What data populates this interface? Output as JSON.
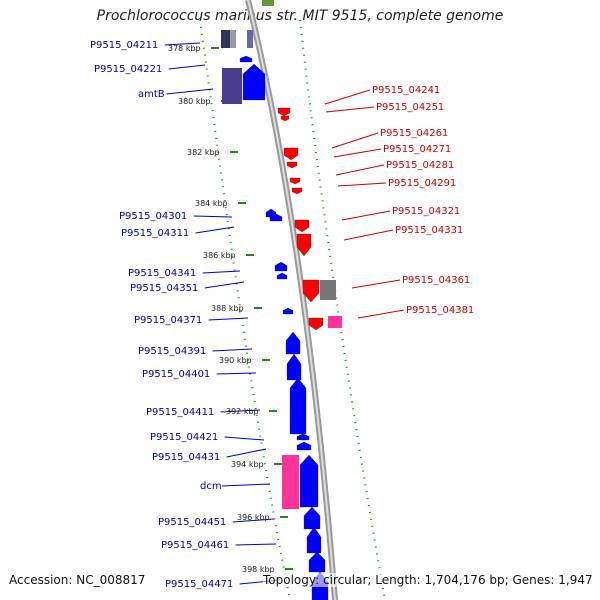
{
  "title": "Prochlorococcus marinus str. MIT 9515, complete genome",
  "footer": {
    "accession": "Accession: NC_008817",
    "topology": "Topology: circular; Length: 1,704,176 bp; Genes: 1,947"
  },
  "colors": {
    "plus_strand": "#0000ff",
    "minus_strand": "#ff0000",
    "rna": "#ff3399",
    "misc_grey": "#777777",
    "trna_green": "#669933",
    "tick_green": "#228822",
    "backbone": "#999999"
  },
  "ruler": {
    "ticks": [
      {
        "label": "378 kbp"
      },
      {
        "label": "380 kbp"
      },
      {
        "label": "382 kbp"
      },
      {
        "label": "384 kbp"
      },
      {
        "label": "386 kbp"
      },
      {
        "label": "388 kbp"
      },
      {
        "label": "390 kbp"
      },
      {
        "label": "392 kbp"
      },
      {
        "label": "394 kbp"
      },
      {
        "label": "396 kbp"
      },
      {
        "label": "398 kbp"
      }
    ]
  },
  "left_labels": [
    "P9515_04211",
    "P9515_04221",
    "amtB",
    "P9515_04301",
    "P9515_04311",
    "P9515_04341",
    "P9515_04351",
    "P9515_04371",
    "P9515_04391",
    "P9515_04401",
    "P9515_04411",
    "P9515_04421",
    "P9515_04431",
    "dcm",
    "P9515_04451",
    "P9515_04461",
    "P9515_04471"
  ],
  "right_labels": [
    "P9515_04241",
    "P9515_04251",
    "P9515_04261",
    "P9515_04271",
    "P9515_04281",
    "P9515_04291",
    "P9515_04321",
    "P9515_04331",
    "P9515_04361",
    "P9515_04381"
  ]
}
